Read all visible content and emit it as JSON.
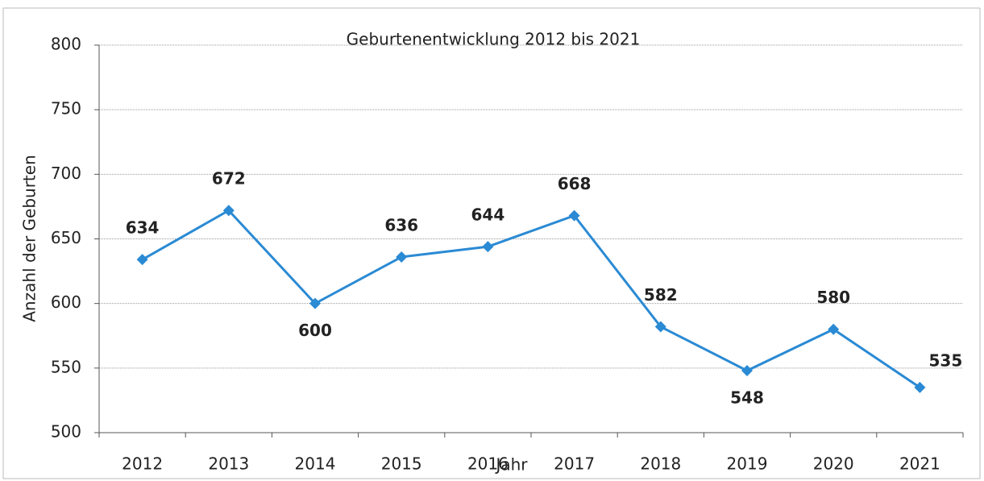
{
  "chart_data": {
    "type": "line",
    "title": "Geburtenentwicklung 2012 bis 2021",
    "x_label": "Jahr",
    "y_label": "Anzahl der Geburten",
    "categories": [
      "2012",
      "2013",
      "2014",
      "2015",
      "2016",
      "2017",
      "2018",
      "2019",
      "2020",
      "2021"
    ],
    "series": [
      {
        "name": "Geburten",
        "color": "#2a8ad4",
        "values": [
          634,
          672,
          600,
          636,
          644,
          668,
          582,
          548,
          580,
          535
        ]
      }
    ],
    "ylim": [
      500,
      800
    ],
    "yticks": [
      500,
      550,
      600,
      650,
      700,
      750,
      800
    ],
    "grid": true
  }
}
